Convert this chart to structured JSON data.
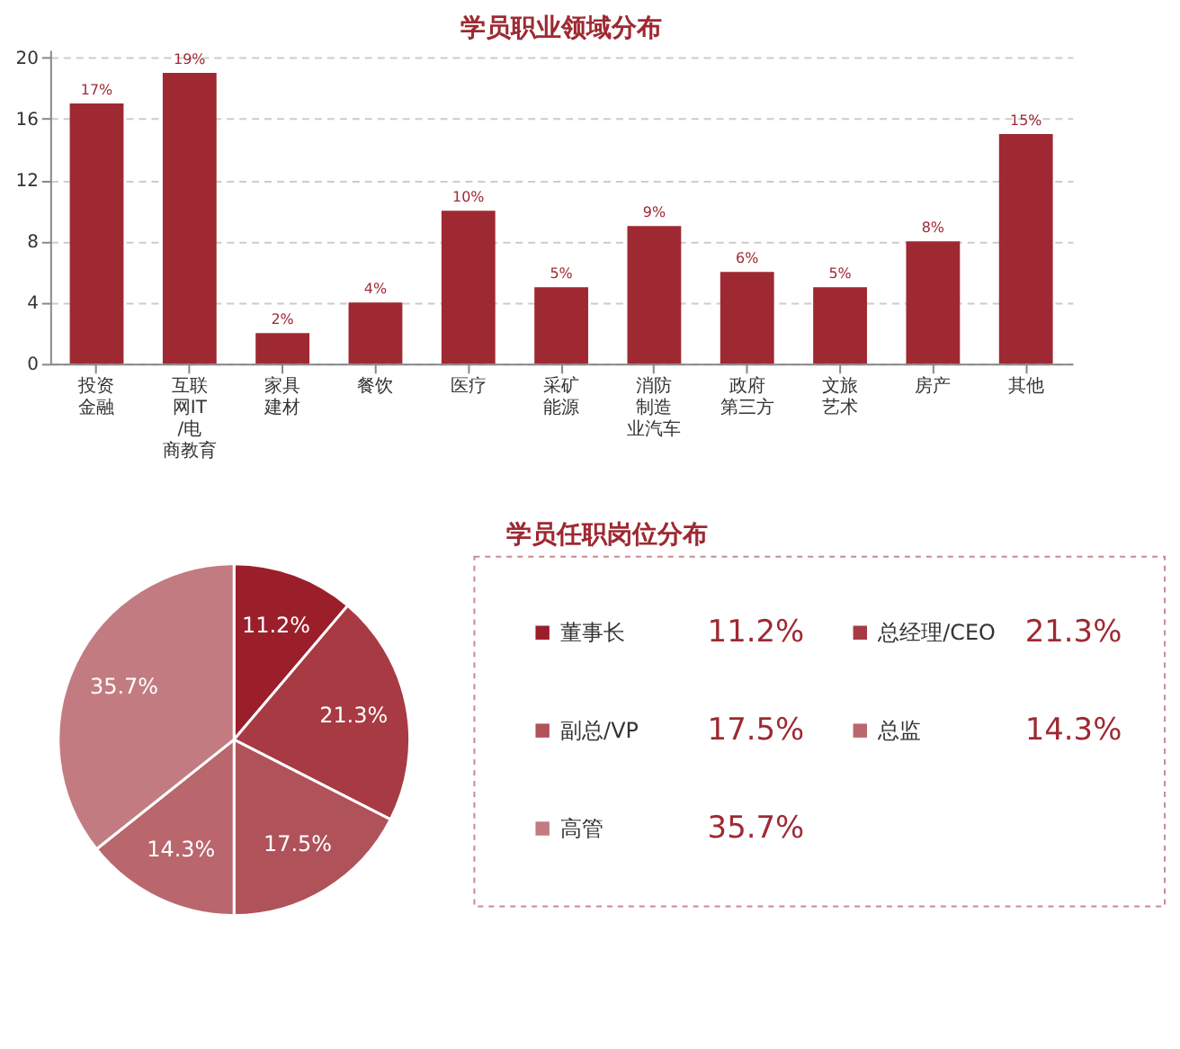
{
  "chart_data": [
    {
      "type": "bar",
      "title": "学员职业领域分布",
      "categories": [
        "投资金融",
        "互联网IT/电商教育",
        "家具建材",
        "餐饮",
        "医疗",
        "采矿能源",
        "消防制造业汽车",
        "政府第三方",
        "文旅艺术",
        "房产",
        "其他"
      ],
      "values": [
        17,
        19,
        2,
        4,
        10,
        5,
        9,
        6,
        5,
        8,
        15
      ],
      "value_labels": [
        "17%",
        "19%",
        "2%",
        "4%",
        "10%",
        "5%",
        "9%",
        "6%",
        "5%",
        "8%",
        "15%"
      ],
      "color": "#9e2932",
      "ylim": [
        0,
        20.5
      ],
      "yticks": [
        0,
        4,
        8,
        12,
        16,
        20
      ],
      "grid": "y"
    },
    {
      "type": "pie",
      "title": "学员任职岗位分布",
      "categories": [
        "董事长",
        "总经理/CEO",
        "副总/VP",
        "总监",
        "高管"
      ],
      "values": [
        11.2,
        21.3,
        17.5,
        14.3,
        35.7
      ],
      "value_labels": [
        "11.2%",
        "21.3%",
        "17.5%",
        "14.3%",
        "35.7%"
      ],
      "colors": [
        "#9b1f2b",
        "#a73a43",
        "#b0525a",
        "#b9666d",
        "#c27c81"
      ],
      "legend": "right"
    }
  ]
}
